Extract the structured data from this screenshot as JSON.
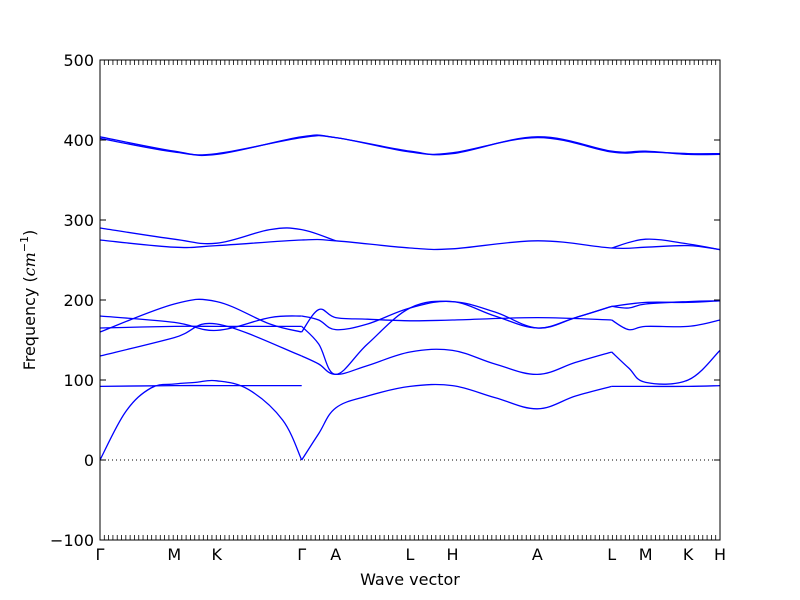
{
  "chart_data": {
    "type": "line",
    "xlabel": "Wave vector",
    "ylabel": "Frequency (cm⁻¹)",
    "ylabel_main": "Frequency (",
    "ylabel_unit": "cm",
    "ylabel_exp": "−1",
    "ylabel_close": ")",
    "ylim": [
      -100,
      500
    ],
    "yticks": [
      {
        "value": -100,
        "label": "−100"
      },
      {
        "value": 0,
        "label": "0"
      },
      {
        "value": 100,
        "label": "100"
      },
      {
        "value": 200,
        "label": "200"
      },
      {
        "value": 300,
        "label": "300"
      },
      {
        "value": 400,
        "label": "400"
      },
      {
        "value": 500,
        "label": "500"
      }
    ],
    "xlim": [
      0,
      14.6
    ],
    "high_symmetry_points": [
      {
        "label": "Γ",
        "x": 0
      },
      {
        "label": "M",
        "x": 1.75
      },
      {
        "label": "K",
        "x": 2.75
      },
      {
        "label": "Γ",
        "x": 4.75
      },
      {
        "label": "A",
        "x": 5.55
      },
      {
        "label": "L",
        "x": 7.3
      },
      {
        "label": "H",
        "x": 8.3
      },
      {
        "label": "A",
        "x": 10.3
      },
      {
        "label": "L",
        "x": 12.05
      },
      {
        "label": "M",
        "x": 12.85
      },
      {
        "label": "K",
        "x": 13.85
      },
      {
        "label": "H",
        "x": 14.6
      }
    ],
    "zero_line": true,
    "color": "#0000ff",
    "series": [
      {
        "x": [
          0,
          0.6,
          1.2,
          1.75,
          2.25,
          2.75,
          3.5,
          4.3,
          4.75
        ],
        "y": [
          0,
          60,
          90,
          95,
          97,
          99,
          88,
          50,
          0
        ]
      },
      {
        "x": [
          0,
          1.75,
          2.75,
          4.75
        ],
        "y": [
          92,
          93,
          93,
          93
        ]
      },
      {
        "x": [
          4.75,
          5.15,
          5.55,
          6.3,
          7.3,
          8.3,
          9.3,
          10.3,
          11.2,
          12.05
        ],
        "y": [
          0,
          33,
          65,
          80,
          92,
          93,
          78,
          64,
          80,
          92
        ]
      },
      {
        "x": [
          12.05,
          12.85,
          13.85,
          14.6
        ],
        "y": [
          92,
          92,
          92,
          93
        ]
      },
      {
        "x": [
          0,
          1.75,
          2.75,
          4.75
        ],
        "y": [
          130,
          153,
          170,
          130
        ]
      },
      {
        "x": [
          4.75,
          5.15,
          5.55,
          6.3,
          7.3,
          8.3,
          9.3,
          10.3,
          11.2,
          12.05
        ],
        "y": [
          130,
          120,
          107,
          118,
          135,
          137,
          120,
          107,
          122,
          135
        ]
      },
      {
        "x": [
          12.05,
          12.45,
          12.85,
          13.85,
          14.6
        ],
        "y": [
          135,
          115,
          97,
          100,
          137
        ]
      },
      {
        "x": [
          0,
          1.75,
          2.75,
          4.0,
          4.75
        ],
        "y": [
          165,
          167,
          167,
          167,
          167
        ]
      },
      {
        "x": [
          4.75,
          5.15,
          5.55,
          6.3,
          7.3,
          8.3,
          9.3,
          10.3,
          11.2,
          12.05
        ],
        "y": [
          167,
          145,
          107,
          145,
          190,
          198,
          185,
          165,
          178,
          192
        ]
      },
      {
        "x": [
          12.05,
          12.85,
          13.85,
          14.6
        ],
        "y": [
          192,
          197,
          197,
          199
        ]
      },
      {
        "x": [
          0,
          1.75,
          2.75,
          4.0,
          4.75
        ],
        "y": [
          160,
          195,
          198,
          170,
          160
        ]
      },
      {
        "x": [
          4.75,
          5.15,
          5.55,
          6.3,
          7.3,
          8.3,
          10.3,
          12.05
        ],
        "y": [
          160,
          188,
          178,
          176,
          174,
          175,
          178,
          175
        ]
      },
      {
        "x": [
          12.05,
          12.45,
          12.85,
          13.85,
          14.6
        ],
        "y": [
          175,
          163,
          167,
          167,
          175
        ]
      },
      {
        "x": [
          0,
          1.75,
          2.75,
          4.0,
          4.75
        ],
        "y": [
          180,
          172,
          162,
          178,
          180
        ]
      },
      {
        "x": [
          4.75,
          5.15,
          5.55,
          6.3,
          7.3,
          8.3,
          9.3,
          10.3,
          11.2,
          12.05
        ],
        "y": [
          180,
          175,
          163,
          170,
          190,
          198,
          180,
          165,
          178,
          192
        ]
      },
      {
        "x": [
          12.05,
          12.45,
          12.85,
          13.85,
          14.6
        ],
        "y": [
          192,
          190,
          195,
          198,
          199
        ]
      },
      {
        "x": [
          0,
          1.75,
          2.75,
          4.75,
          5.55,
          7.3,
          8.3,
          10.3,
          12.05,
          12.85,
          13.85,
          14.6
        ],
        "y": [
          275,
          266,
          268,
          275,
          274,
          265,
          264,
          274,
          265,
          266,
          268,
          263
        ]
      },
      {
        "x": [
          0,
          1.75,
          2.75,
          4.0,
          4.75,
          5.55
        ],
        "y": [
          290,
          276,
          271,
          288,
          288,
          274
        ]
      },
      {
        "x": [
          12.05,
          12.85,
          13.85,
          14.6
        ],
        "y": [
          265,
          276,
          270,
          263
        ]
      },
      {
        "x": [
          0,
          1.75,
          2.75,
          4.75,
          5.55,
          7.3,
          8.3,
          10.3,
          12.05,
          12.85,
          13.85,
          14.6
        ],
        "y": [
          404,
          386,
          382,
          404,
          403,
          386,
          383,
          404,
          386,
          386,
          382,
          382
        ]
      },
      {
        "x": [
          0,
          1.75,
          2.75,
          4.75,
          5.55,
          7.3,
          8.3,
          10.3,
          12.05,
          12.85,
          13.85,
          14.6
        ],
        "y": [
          402,
          385,
          383,
          403,
          403,
          385,
          384,
          403,
          385,
          385,
          383,
          383
        ]
      }
    ]
  }
}
